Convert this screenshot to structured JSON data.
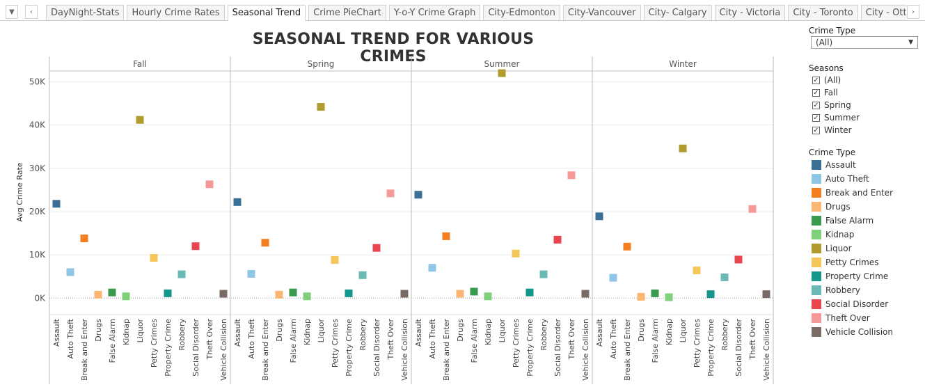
{
  "nav": {
    "dropdown_icon": "caret-down-icon",
    "prev_icon": "chevron-left-icon",
    "next_icon": "chevron-right-icon"
  },
  "tabs": [
    {
      "label": "DayNight-Stats",
      "active": false
    },
    {
      "label": "Hourly Crime Rates",
      "active": false
    },
    {
      "label": "Seasonal Trend",
      "active": true
    },
    {
      "label": "Crime PieChart",
      "active": false
    },
    {
      "label": "Y-o-Y Crime Graph",
      "active": false
    },
    {
      "label": "City-Edmonton",
      "active": false
    },
    {
      "label": "City-Vancouver",
      "active": false
    },
    {
      "label": "City- Calgary",
      "active": false
    },
    {
      "label": "City - Victoria",
      "active": false
    },
    {
      "label": "City - Toronto",
      "active": false
    },
    {
      "label": "City - Ottawa",
      "active": false
    },
    {
      "label": "C",
      "active": false
    }
  ],
  "filters": {
    "crime_type_title": "Crime Type",
    "crime_type_value": "(All)",
    "seasons_title": "Seasons",
    "seasons": [
      {
        "label": "(All)",
        "checked": true
      },
      {
        "label": "Fall",
        "checked": true
      },
      {
        "label": "Spring",
        "checked": true
      },
      {
        "label": "Summer",
        "checked": true
      },
      {
        "label": "Winter",
        "checked": true
      }
    ],
    "legend_title": "Crime Type"
  },
  "legend": [
    {
      "label": "Assault",
      "color": "#3a6f96"
    },
    {
      "label": "Auto Theft",
      "color": "#8fc6e6"
    },
    {
      "label": "Break and Enter",
      "color": "#f47f20"
    },
    {
      "label": "Drugs",
      "color": "#fbb673"
    },
    {
      "label": "False Alarm",
      "color": "#3a9b4f"
    },
    {
      "label": "Kidnap",
      "color": "#7ed07b"
    },
    {
      "label": "Liquor",
      "color": "#b19a2e"
    },
    {
      "label": "Petty Crimes",
      "color": "#f5c65a"
    },
    {
      "label": "Property Crime",
      "color": "#14968b"
    },
    {
      "label": "Robbery",
      "color": "#6ab9b4"
    },
    {
      "label": "Social Disorder",
      "color": "#e8454f"
    },
    {
      "label": "Theft Over",
      "color": "#f59a99"
    },
    {
      "label": "Vehicle Collision",
      "color": "#7a6a65"
    }
  ],
  "chart_data": {
    "type": "scatter",
    "title": "SEASONAL TREND FOR VARIOUS CRIMES",
    "ylabel": "Avg Crime Rate",
    "xlabel": "",
    "ylim": [
      -3500,
      52500
    ],
    "yticks": [
      0,
      10000,
      20000,
      30000,
      40000,
      50000
    ],
    "ytick_labels": [
      "0K",
      "10K",
      "20K",
      "30K",
      "40K",
      "50K"
    ],
    "grid": true,
    "legend_position": "right",
    "panels": [
      "Fall",
      "Spring",
      "Summer",
      "Winter"
    ],
    "categories": [
      "Assault",
      "Auto Theft",
      "Break and Enter",
      "Drugs",
      "False Alarm",
      "Kidnap",
      "Liquor",
      "Petty Crimes",
      "Property Crime",
      "Robbery",
      "Social Disorder",
      "Theft Over",
      "Vehicle Collision"
    ],
    "series": [
      {
        "panel": "Fall",
        "values": [
          21800,
          6000,
          13800,
          800,
          1300,
          400,
          41200,
          9300,
          1100,
          5500,
          12000,
          26300,
          1000
        ]
      },
      {
        "panel": "Spring",
        "values": [
          22200,
          5600,
          12800,
          800,
          1300,
          400,
          44200,
          8800,
          1100,
          5300,
          11600,
          24200,
          1000
        ]
      },
      {
        "panel": "Summer",
        "values": [
          23900,
          7000,
          14300,
          1000,
          1500,
          400,
          52000,
          10300,
          1300,
          5500,
          13500,
          28400,
          1000
        ]
      },
      {
        "panel": "Winter",
        "values": [
          18900,
          4700,
          11900,
          300,
          1100,
          200,
          34600,
          6400,
          900,
          4800,
          8900,
          20600,
          900
        ]
      }
    ]
  }
}
